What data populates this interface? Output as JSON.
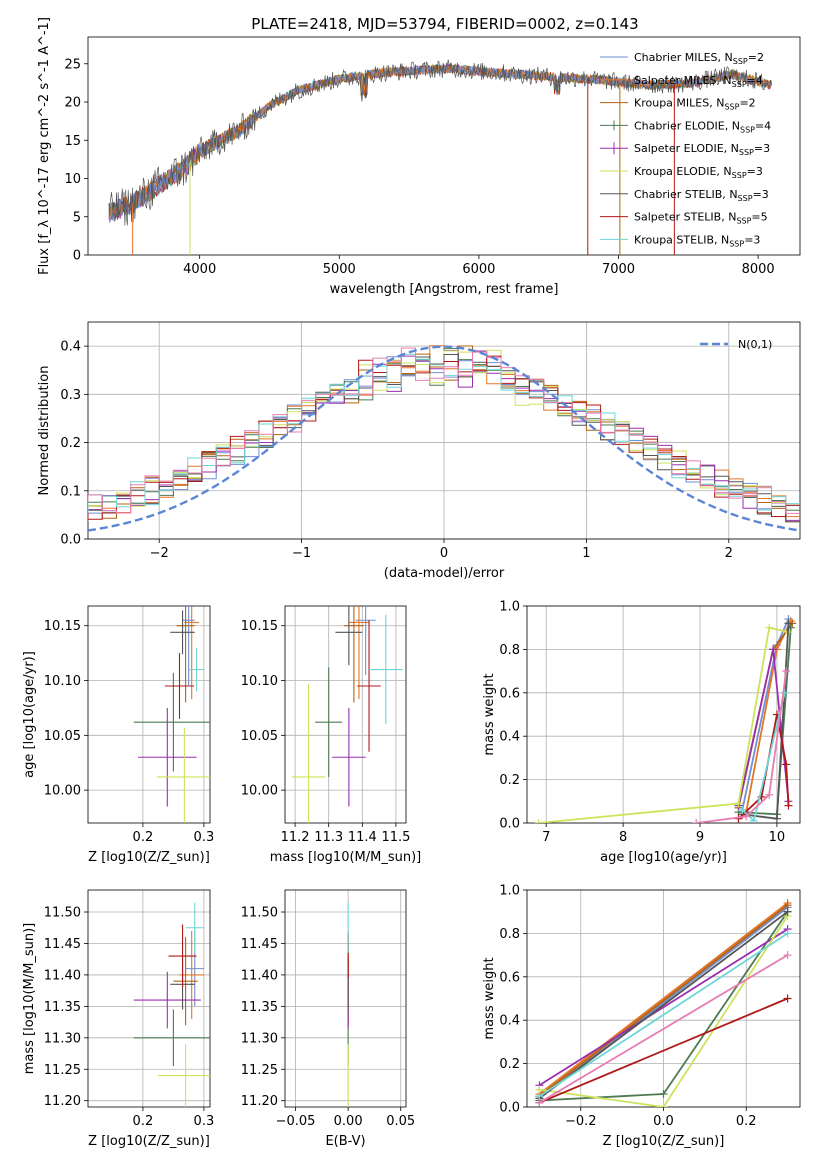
{
  "figure": {
    "title": "PLATE=2418, MJD=53794, FIBERID=0002, z=0.143"
  },
  "legend": [
    {
      "label": "Chabrier MILES, N_SSP=2",
      "color": "#6f8fd6"
    },
    {
      "label": "Salpeter MILES, N_SSP=4",
      "color": "#e57528"
    },
    {
      "label": "Kroupa MILES, N_SSP=2",
      "color": "#b5620f"
    },
    {
      "label": "Chabrier ELODIE, N_SSP=4",
      "color": "#4d7a52"
    },
    {
      "label": "Salpeter ELODIE, N_SSP=3",
      "color": "#9b2fb0"
    },
    {
      "label": "Kroupa ELODIE, N_SSP=3",
      "color": "#cde35a"
    },
    {
      "label": "Chabrier STELIB, N_SSP=3",
      "color": "#555555"
    },
    {
      "label": "Salpeter STELIB, N_SSP=5",
      "color": "#b01818"
    },
    {
      "label": "Kroupa STELIB, N_SSP=3",
      "color": "#6fd6d6"
    }
  ],
  "extra_color": "#e87cb4",
  "chart_data": [
    {
      "id": "spectrum",
      "type": "line",
      "xlabel": "wavelength [Angstrom, rest frame]",
      "ylabel": "Flux [f_λ 10^-17 erg cm^-2 s^-1 A^-1]",
      "xlim": [
        3200,
        8300
      ],
      "ylim": [
        0,
        28.5
      ],
      "xticks": [
        4000,
        5000,
        6000,
        7000,
        8000
      ],
      "yticks": [
        0,
        5,
        10,
        15,
        20,
        25
      ],
      "grid": false,
      "series": [
        {
          "x": [
            3350,
            3500,
            3700,
            3900,
            4000,
            4300,
            4500,
            4700,
            5000,
            5300,
            5600,
            5800,
            6000,
            6300,
            6600,
            6800,
            7000,
            7200,
            7500,
            7800,
            8100
          ],
          "y": [
            5.5,
            6.5,
            9.0,
            11.5,
            13.5,
            16.5,
            19.5,
            21.5,
            23.0,
            23.8,
            24.2,
            24.4,
            24.0,
            23.6,
            23.2,
            23.0,
            22.6,
            22.2,
            22.4,
            23.6,
            22.2
          ]
        }
      ]
    },
    {
      "id": "residuals",
      "type": "line",
      "xlabel": "(data-model)/error",
      "ylabel": "Normed distribution",
      "xlim": [
        -2.5,
        2.5
      ],
      "ylim": [
        0,
        0.45
      ],
      "xticks": [
        -2,
        -1,
        0,
        1,
        2
      ],
      "yticks": [
        0.0,
        0.1,
        0.2,
        0.3,
        0.4
      ],
      "grid": true,
      "legend_label": "N(0,1)",
      "legend_position": "top-right",
      "model": "normal pdf, mean 0, sigma 1"
    },
    {
      "id": "age_vs_Z",
      "type": "scatter",
      "xlabel": "Z [log10(Z/Z_sun)]",
      "ylabel": "age [log10(age/yr)]",
      "xlim": [
        0.11,
        0.31
      ],
      "ylim": [
        9.97,
        10.168
      ],
      "xticks": [
        0.2,
        0.3
      ],
      "yticks": [
        10.0,
        10.05,
        10.1,
        10.15
      ],
      "grid": true,
      "points": [
        {
          "x": 0.275,
          "y": 10.155,
          "xerr": 0.01,
          "yerr": 0.06
        },
        {
          "x": 0.28,
          "y": 10.153,
          "xerr": 0.012,
          "yerr": 0.07
        },
        {
          "x": 0.27,
          "y": 10.15,
          "xerr": 0.015,
          "yerr": 0.07
        },
        {
          "x": 0.25,
          "y": 10.062,
          "xerr": 0.065,
          "yerr": 0.045
        },
        {
          "x": 0.24,
          "y": 10.03,
          "xerr": 0.048,
          "yerr": 0.045
        },
        {
          "x": 0.268,
          "y": 10.012,
          "xerr": 0.045,
          "yerr": 0.045
        },
        {
          "x": 0.265,
          "y": 10.144,
          "xerr": 0.02,
          "yerr": 0.02
        },
        {
          "x": 0.26,
          "y": 10.095,
          "xerr": 0.024,
          "yerr": 0.03
        },
        {
          "x": 0.288,
          "y": 10.11,
          "xerr": 0.012,
          "yerr": 0.02
        }
      ]
    },
    {
      "id": "age_vs_mass",
      "type": "scatter",
      "xlabel": "mass [log10(M/M_sun)]",
      "ylabel": "",
      "xlim": [
        11.17,
        11.53
      ],
      "ylim": [
        9.97,
        10.168
      ],
      "xticks": [
        11.2,
        11.3,
        11.4,
        11.5
      ],
      "yticks": [
        10.0,
        10.05,
        10.1,
        10.15
      ],
      "grid": true,
      "points": [
        {
          "x": 11.41,
          "y": 10.155,
          "xerr": 0.03,
          "yerr": 0.05
        },
        {
          "x": 11.39,
          "y": 10.153,
          "xerr": 0.03,
          "yerr": 0.07
        },
        {
          "x": 11.375,
          "y": 10.15,
          "xerr": 0.03,
          "yerr": 0.07
        },
        {
          "x": 11.3,
          "y": 10.062,
          "xerr": 0.04,
          "yerr": 0.05
        },
        {
          "x": 11.36,
          "y": 10.03,
          "xerr": 0.05,
          "yerr": 0.045
        },
        {
          "x": 11.24,
          "y": 10.012,
          "xerr": 0.05,
          "yerr": 0.085
        },
        {
          "x": 11.36,
          "y": 10.144,
          "xerr": 0.04,
          "yerr": 0.03
        },
        {
          "x": 11.42,
          "y": 10.095,
          "xerr": 0.035,
          "yerr": 0.06
        },
        {
          "x": 11.47,
          "y": 10.11,
          "xerr": 0.05,
          "yerr": 0.05
        }
      ]
    },
    {
      "id": "weight_vs_age",
      "type": "line",
      "xlabel": "age [log10(age/yr)]",
      "ylabel": "mass weight",
      "xlim": [
        6.75,
        10.3
      ],
      "ylim": [
        0,
        1.0
      ],
      "xticks": [
        7,
        8,
        9,
        10
      ],
      "yticks": [
        0.0,
        0.2,
        0.4,
        0.6,
        0.8,
        1.0
      ],
      "grid": true,
      "series": [
        {
          "x": [
            9.55,
            10.0,
            10.15
          ],
          "y": [
            0.06,
            0.82,
            0.94
          ]
        },
        {
          "x": [
            9.6,
            10.0,
            10.18
          ],
          "y": [
            0.05,
            0.8,
            0.93
          ]
        },
        {
          "x": [
            9.5,
            9.95,
            10.2
          ],
          "y": [
            0.07,
            0.8,
            0.92
          ]
        },
        {
          "x": [
            9.5,
            10.0,
            10.18
          ],
          "y": [
            0.05,
            0.04,
            0.9
          ]
        },
        {
          "x": [
            9.5,
            9.95,
            10.15
          ],
          "y": [
            0.08,
            0.8,
            0.1
          ]
        },
        {
          "x": [
            6.9,
            9.5,
            9.9,
            10.15
          ],
          "y": [
            0.0,
            0.09,
            0.9,
            0.88
          ]
        },
        {
          "x": [
            9.55,
            10.0,
            10.15
          ],
          "y": [
            0.04,
            0.02,
            0.92
          ]
        },
        {
          "x": [
            9.5,
            9.8,
            10.0,
            10.12,
            10.15
          ],
          "y": [
            0.02,
            0.12,
            0.5,
            0.27,
            0.08
          ]
        },
        {
          "x": [
            9.55,
            9.7,
            10.1
          ],
          "y": [
            0.06,
            0.01,
            0.6
          ]
        },
        {
          "x": [
            8.95,
            9.6,
            9.9,
            10.12
          ],
          "y": [
            0.0,
            0.03,
            0.13,
            0.7
          ]
        }
      ]
    },
    {
      "id": "mass_vs_Z",
      "type": "scatter",
      "xlabel": "Z [log10(Z/Z_sun)]",
      "ylabel": "mass [log10(M/M_sun)]",
      "xlim": [
        0.11,
        0.31
      ],
      "ylim": [
        11.19,
        11.535
      ],
      "xticks": [
        0.2,
        0.3
      ],
      "yticks": [
        11.2,
        11.25,
        11.3,
        11.35,
        11.4,
        11.45,
        11.5
      ],
      "grid": true,
      "points": [
        {
          "x": 0.285,
          "y": 11.41,
          "xerr": 0.015,
          "yerr": 0.06
        },
        {
          "x": 0.28,
          "y": 11.4,
          "xerr": 0.02,
          "yerr": 0.07
        },
        {
          "x": 0.27,
          "y": 11.39,
          "xerr": 0.02,
          "yerr": 0.07
        },
        {
          "x": 0.25,
          "y": 11.3,
          "xerr": 0.065,
          "yerr": 0.045
        },
        {
          "x": 0.24,
          "y": 11.36,
          "xerr": 0.055,
          "yerr": 0.045
        },
        {
          "x": 0.27,
          "y": 11.24,
          "xerr": 0.045,
          "yerr": 0.05
        },
        {
          "x": 0.265,
          "y": 11.385,
          "xerr": 0.02,
          "yerr": 0.04
        },
        {
          "x": 0.265,
          "y": 11.43,
          "xerr": 0.023,
          "yerr": 0.05
        },
        {
          "x": 0.285,
          "y": 11.475,
          "xerr": 0.015,
          "yerr": 0.04
        }
      ]
    },
    {
      "id": "mass_vs_EBV",
      "type": "scatter",
      "xlabel": "E(B-V)",
      "ylabel": "",
      "xlim": [
        -0.06,
        0.055
      ],
      "ylim": [
        11.19,
        11.535
      ],
      "xticks": [
        -0.05,
        0.0,
        0.05
      ],
      "yticks": [
        11.2,
        11.25,
        11.3,
        11.35,
        11.4,
        11.45,
        11.5
      ],
      "grid": true,
      "points": [
        {
          "x": 0.0,
          "y": 11.41,
          "yerr": 0.06
        },
        {
          "x": 0.0,
          "y": 11.4,
          "yerr": 0.07
        },
        {
          "x": 0.0,
          "y": 11.39,
          "yerr": 0.07
        },
        {
          "x": 0.0,
          "y": 11.3,
          "yerr": 0.045
        },
        {
          "x": 0.0,
          "y": 11.36,
          "yerr": 0.045
        },
        {
          "x": 0.0,
          "y": 11.24,
          "yerr": 0.05
        },
        {
          "x": 0.0,
          "y": 11.385,
          "yerr": 0.04
        },
        {
          "x": 0.0,
          "y": 11.43,
          "yerr": 0.035
        },
        {
          "x": 0.0,
          "y": 11.475,
          "yerr": 0.04
        }
      ]
    },
    {
      "id": "weight_vs_Z",
      "type": "line",
      "xlabel": "Z [log10(Z/Z_sun)]",
      "ylabel": "mass weight",
      "xlim": [
        -0.33,
        0.33
      ],
      "ylim": [
        0,
        1.0
      ],
      "xticks": [
        -0.2,
        0.0,
        0.2
      ],
      "yticks": [
        0.0,
        0.2,
        0.4,
        0.6,
        0.8,
        1.0
      ],
      "grid": true,
      "series": [
        {
          "x": [
            -0.3,
            0.3
          ],
          "y": [
            0.04,
            0.92
          ]
        },
        {
          "x": [
            -0.3,
            0.3
          ],
          "y": [
            0.06,
            0.94
          ]
        },
        {
          "x": [
            -0.3,
            0.3
          ],
          "y": [
            0.05,
            0.93
          ]
        },
        {
          "x": [
            -0.3,
            0.0,
            0.3
          ],
          "y": [
            0.03,
            0.06,
            0.9
          ]
        },
        {
          "x": [
            -0.3,
            0.3
          ],
          "y": [
            0.1,
            0.82
          ]
        },
        {
          "x": [
            -0.3,
            0.0,
            0.3
          ],
          "y": [
            0.08,
            0.0,
            0.88
          ]
        },
        {
          "x": [
            -0.3,
            0.3
          ],
          "y": [
            0.04,
            0.9
          ]
        },
        {
          "x": [
            -0.3,
            0.3
          ],
          "y": [
            0.02,
            0.5
          ]
        },
        {
          "x": [
            -0.3,
            0.3
          ],
          "y": [
            0.05,
            0.8
          ]
        },
        {
          "x": [
            -0.3,
            0.3
          ],
          "y": [
            0.02,
            0.7
          ]
        }
      ]
    }
  ]
}
